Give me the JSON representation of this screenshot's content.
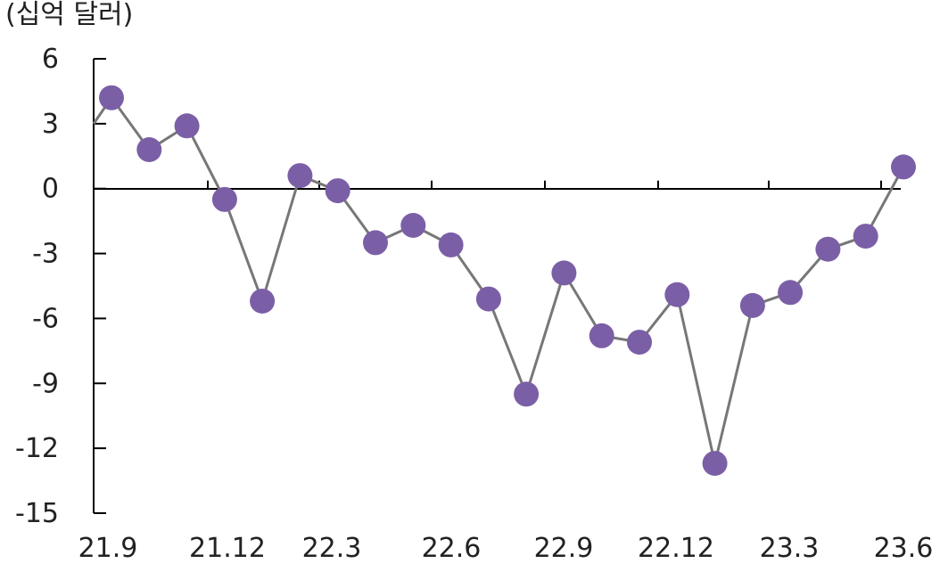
{
  "chart_data": {
    "type": "line",
    "ylabel": "(십억 달러)",
    "ylim": [
      -15,
      6
    ],
    "yticks": [
      6,
      3,
      0,
      -3,
      -6,
      -9,
      -12,
      -15
    ],
    "ytick_labels": [
      "6",
      "3",
      "0",
      "-3",
      "-6",
      "-9",
      "-12",
      "-15"
    ],
    "xtick_labels": [
      "21.9",
      "21.12",
      "22.3",
      "22.6",
      "22.9",
      "22.12",
      "23.3",
      "23.6"
    ],
    "grid": false,
    "series": [
      {
        "x": [
          "21.9",
          "21.10",
          "21.11",
          "21.12",
          "22.1",
          "22.2",
          "22.3",
          "22.4",
          "22.5",
          "22.6",
          "22.7",
          "22.8",
          "22.9",
          "22.10",
          "22.11",
          "22.12",
          "23.1",
          "23.2",
          "23.3",
          "23.4",
          "23.5",
          "23.6"
        ],
        "values": [
          4.2,
          1.8,
          2.9,
          -0.5,
          -5.2,
          0.6,
          -0.1,
          -2.5,
          -1.7,
          -2.6,
          -5.1,
          -9.5,
          -3.9,
          -6.8,
          -7.1,
          -4.9,
          -12.7,
          -5.4,
          -4.8,
          -2.8,
          -2.2,
          1.0
        ],
        "color": "#7b5fa6",
        "line_color": "#777777"
      }
    ]
  }
}
